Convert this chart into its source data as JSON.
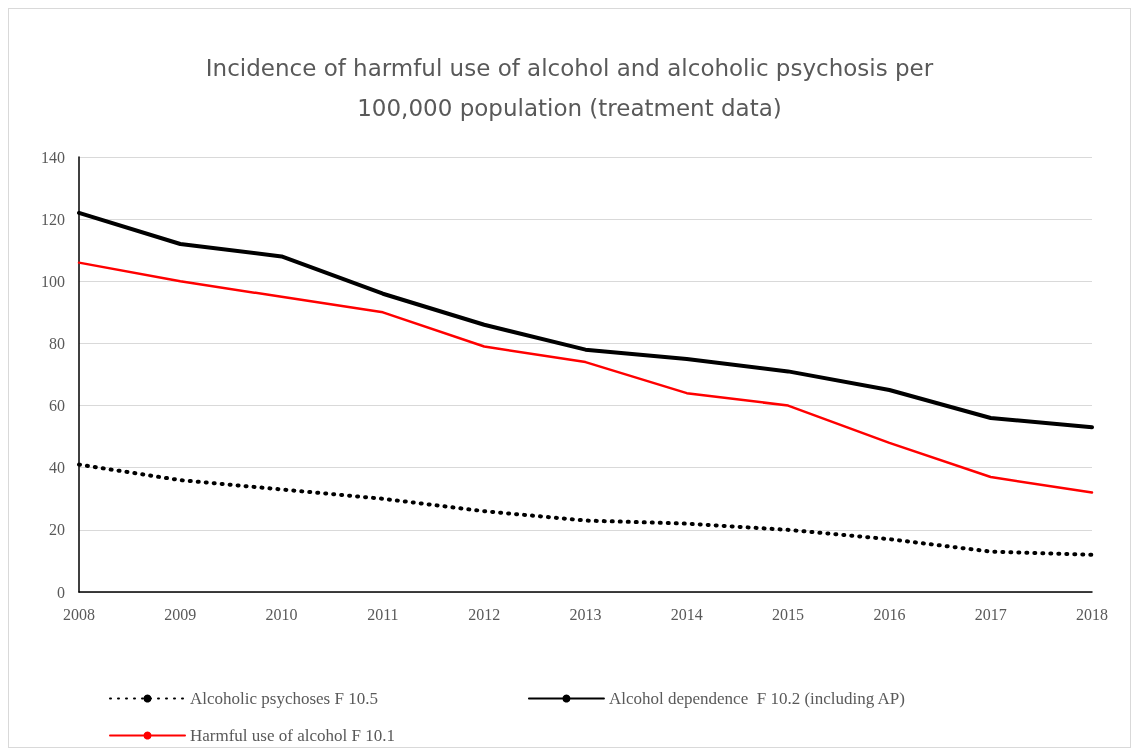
{
  "chart_data": {
    "type": "line",
    "title": "Incidence of harmful use of alcohol and alcoholic psychosis per\n100,000 population (treatment data)",
    "categories": [
      "2008",
      "2009",
      "2010",
      "2011",
      "2012",
      "2013",
      "2014",
      "2015",
      "2016",
      "2017",
      "2018"
    ],
    "series": [
      {
        "name": "Alcoholic psychoses F 10.5",
        "color": "#000000",
        "line_style": "dotted",
        "values": [
          41,
          36,
          33,
          30,
          26,
          23,
          22,
          20,
          17,
          13,
          12
        ]
      },
      {
        "name": "Alcohol dependence  F 10.2 (including AP)",
        "color": "#000000",
        "line_style": "solid",
        "values": [
          122,
          112,
          108,
          96,
          86,
          78,
          75,
          71,
          65,
          56,
          53
        ]
      },
      {
        "name": "Harmful use of alcohol F 10.1",
        "color": "#ff0000",
        "line_style": "solid",
        "values": [
          106,
          100,
          95,
          90,
          79,
          74,
          64,
          60,
          48,
          37,
          32
        ]
      }
    ],
    "ylim": [
      0,
      140
    ],
    "yticks": [
      0,
      20,
      40,
      60,
      80,
      100,
      120,
      140
    ],
    "grid": "y",
    "legend": "bottom",
    "marker": "none"
  }
}
